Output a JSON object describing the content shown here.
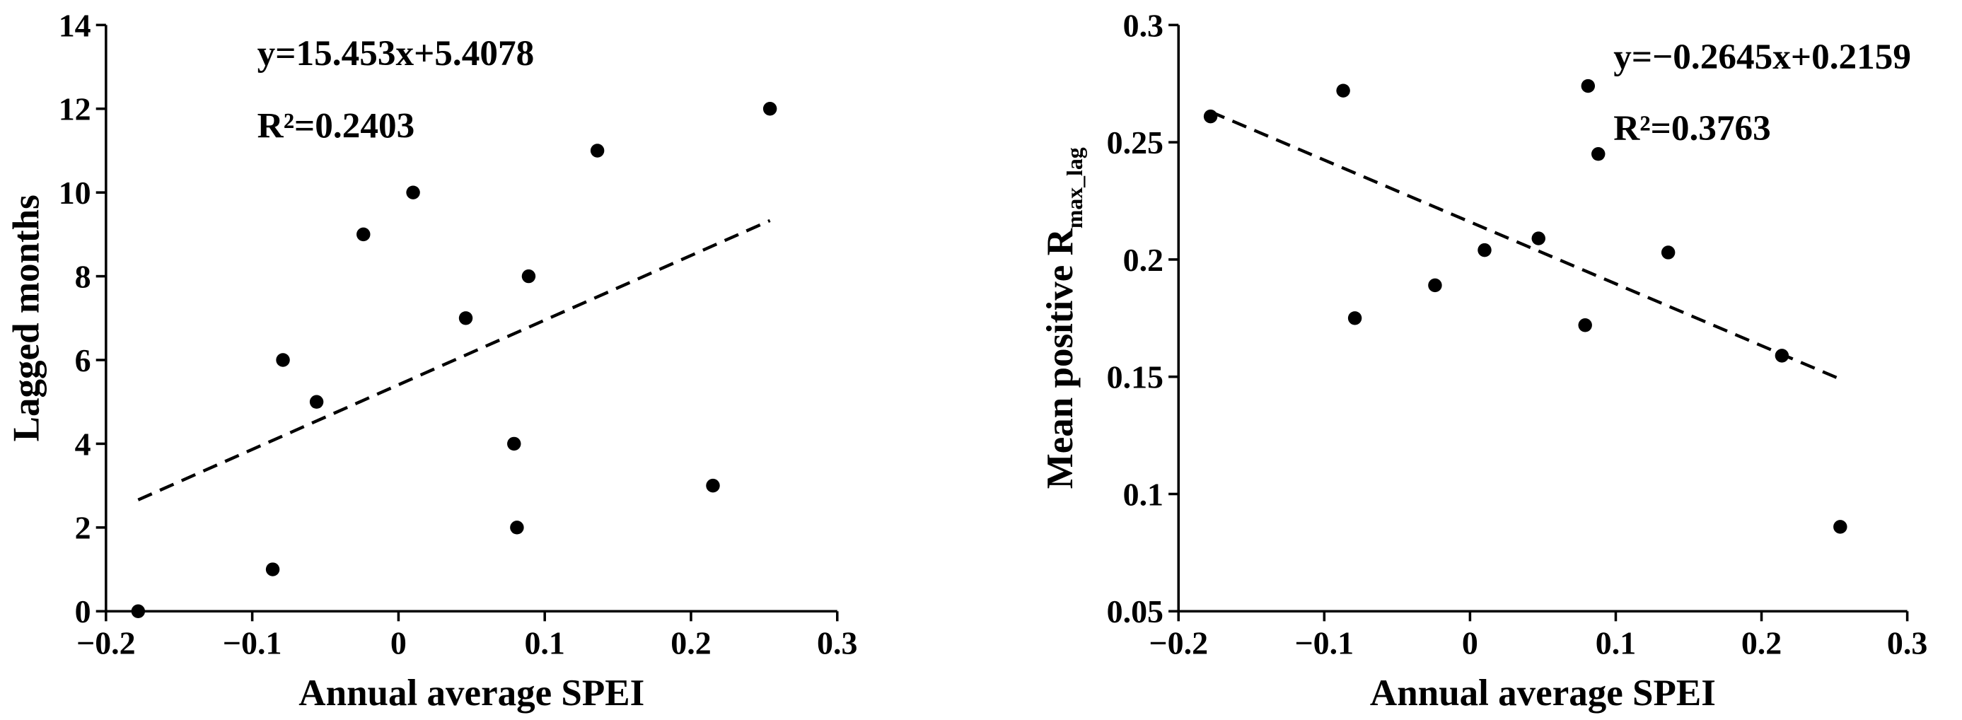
{
  "chart_data": [
    {
      "type": "scatter",
      "x_label": "Annual average SPEI",
      "y_label": "Lagged months",
      "equation": "y=15.453x+5.4078",
      "r_squared": "R²=0.2403",
      "x": [
        -0.178,
        -0.086,
        -0.079,
        -0.056,
        -0.024,
        0.01,
        0.046,
        0.079,
        0.081,
        0.089,
        0.136,
        0.215,
        0.254
      ],
      "values": [
        0,
        1,
        6,
        5,
        9,
        10,
        7,
        4,
        2,
        8,
        11,
        3,
        12
      ],
      "trend_line": {
        "x": [
          -0.178,
          0.254
        ],
        "values": [
          2.66,
          9.33
        ]
      },
      "color": "#000000",
      "xlim": [
        -0.2,
        0.3
      ],
      "xticks": [
        {
          "value": -0.2,
          "label": "−0.2"
        },
        {
          "value": -0.1,
          "label": "−0.1"
        },
        0,
        0.1,
        0.2,
        0.3
      ],
      "ylim": [
        0,
        14
      ],
      "yticks": [
        0,
        2,
        4,
        6,
        8,
        10,
        12,
        14
      ]
    },
    {
      "type": "scatter",
      "x_label": "Annual average SPEI",
      "y_label": "Mean positive R",
      "y_label_subscript": "max_lag",
      "equation": "y=−0.2645x+0.2159",
      "r_squared": "R²=0.3763",
      "x": [
        -0.178,
        -0.087,
        -0.079,
        -0.024,
        0.01,
        0.047,
        0.081,
        0.079,
        0.088,
        0.136,
        0.214,
        0.254
      ],
      "values": [
        0.261,
        0.272,
        0.175,
        0.189,
        0.204,
        0.209,
        0.274,
        0.172,
        0.245,
        0.203,
        0.159,
        0.086
      ],
      "trend_line": {
        "x": [
          -0.178,
          0.254
        ],
        "values": [
          0.263,
          0.149
        ]
      },
      "color": "#000000",
      "xlim": [
        -0.2,
        0.3
      ],
      "xticks": [
        {
          "value": -0.2,
          "label": "−0.2"
        },
        {
          "value": -0.1,
          "label": "−0.1"
        },
        0,
        0.1,
        0.2,
        0.3
      ],
      "ylim": [
        0.05,
        0.3
      ],
      "yticks": [
        0.05,
        0.1,
        0.15,
        0.2,
        0.25,
        0.3
      ]
    }
  ]
}
